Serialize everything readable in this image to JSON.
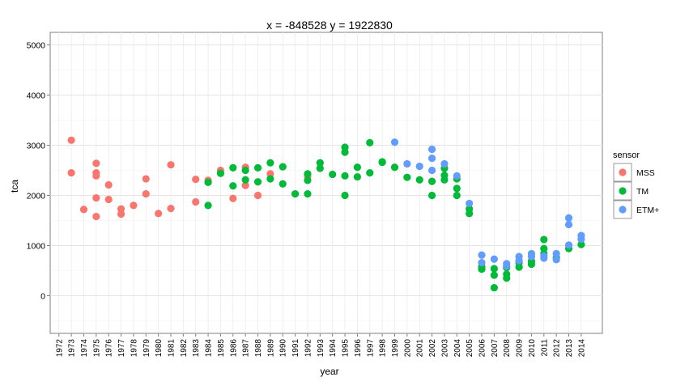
{
  "chart_data": {
    "type": "scatter",
    "title": "x = -848528 y = 1922830",
    "xlabel": "year",
    "ylabel": "tca",
    "xlim": [
      1971.3,
      2015.7
    ],
    "ylim": [
      -750,
      5250
    ],
    "x_ticks": [
      1972,
      1973,
      1974,
      1975,
      1976,
      1977,
      1978,
      1979,
      1980,
      1981,
      1982,
      1983,
      1984,
      1985,
      1986,
      1987,
      1988,
      1989,
      1990,
      1991,
      1992,
      1993,
      1994,
      1995,
      1996,
      1997,
      1998,
      1999,
      2000,
      2001,
      2002,
      2003,
      2004,
      2005,
      2006,
      2007,
      2008,
      2009,
      2010,
      2011,
      2012,
      2013,
      2014
    ],
    "y_ticks": [
      0,
      1000,
      2000,
      3000,
      4000,
      5000
    ],
    "grid": true,
    "legend": {
      "title": "sensor",
      "placement": "right",
      "entries": [
        "MSS",
        "TM",
        "ETM+"
      ]
    },
    "series": [
      {
        "name": "MSS",
        "color": "#F8766D",
        "points": [
          [
            1973,
            3100
          ],
          [
            1973,
            2450
          ],
          [
            1974,
            1720
          ],
          [
            1975,
            2640
          ],
          [
            1975,
            2450
          ],
          [
            1975,
            2390
          ],
          [
            1975,
            1950
          ],
          [
            1975,
            1580
          ],
          [
            1976,
            2210
          ],
          [
            1976,
            1920
          ],
          [
            1977,
            1730
          ],
          [
            1977,
            1630
          ],
          [
            1978,
            1800
          ],
          [
            1979,
            2330
          ],
          [
            1979,
            2030
          ],
          [
            1980,
            1640
          ],
          [
            1981,
            2610
          ],
          [
            1981,
            1740
          ],
          [
            1983,
            2320
          ],
          [
            1983,
            1870
          ],
          [
            1984,
            2300
          ],
          [
            1985,
            2500
          ],
          [
            1986,
            1940
          ],
          [
            1987,
            2560
          ],
          [
            1987,
            2200
          ],
          [
            1988,
            2000
          ],
          [
            1989,
            2430
          ],
          [
            1992,
            2380
          ]
        ]
      },
      {
        "name": "TM",
        "color": "#00BA38",
        "points": [
          [
            1984,
            2260
          ],
          [
            1984,
            1800
          ],
          [
            1985,
            2440
          ],
          [
            1986,
            2550
          ],
          [
            1986,
            2190
          ],
          [
            1987,
            2500
          ],
          [
            1987,
            2310
          ],
          [
            1988,
            2550
          ],
          [
            1988,
            2270
          ],
          [
            1989,
            2650
          ],
          [
            1989,
            2330
          ],
          [
            1990,
            2570
          ],
          [
            1990,
            2230
          ],
          [
            1991,
            2030
          ],
          [
            1992,
            2430
          ],
          [
            1992,
            2300
          ],
          [
            1992,
            2030
          ],
          [
            1993,
            2650
          ],
          [
            1993,
            2540
          ],
          [
            1994,
            2420
          ],
          [
            1995,
            2960
          ],
          [
            1995,
            2860
          ],
          [
            1995,
            2390
          ],
          [
            1995,
            2000
          ],
          [
            1996,
            2560
          ],
          [
            1996,
            2370
          ],
          [
            1997,
            3050
          ],
          [
            1997,
            2450
          ],
          [
            1998,
            2670
          ],
          [
            1998,
            2660
          ],
          [
            1999,
            2560
          ],
          [
            2000,
            2360
          ],
          [
            2001,
            2310
          ],
          [
            2002,
            2280
          ],
          [
            2002,
            2000
          ],
          [
            2003,
            2540
          ],
          [
            2003,
            2400
          ],
          [
            2003,
            2310
          ],
          [
            2004,
            2330
          ],
          [
            2004,
            2140
          ],
          [
            2004,
            2000
          ],
          [
            2005,
            1730
          ],
          [
            2005,
            1640
          ],
          [
            2006,
            580
          ],
          [
            2006,
            530
          ],
          [
            2007,
            540
          ],
          [
            2007,
            410
          ],
          [
            2007,
            160
          ],
          [
            2008,
            560
          ],
          [
            2008,
            430
          ],
          [
            2008,
            350
          ],
          [
            2009,
            660
          ],
          [
            2009,
            570
          ],
          [
            2010,
            690
          ],
          [
            2010,
            630
          ],
          [
            2011,
            1120
          ],
          [
            2011,
            940
          ],
          [
            2011,
            840
          ],
          [
            2012,
            760
          ],
          [
            2013,
            940
          ],
          [
            2014,
            1020
          ]
        ]
      },
      {
        "name": "ETM+",
        "color": "#619CFF",
        "points": [
          [
            1999,
            3060
          ],
          [
            2000,
            2630
          ],
          [
            2001,
            2580
          ],
          [
            2002,
            2920
          ],
          [
            2002,
            2740
          ],
          [
            2002,
            2500
          ],
          [
            2003,
            2630
          ],
          [
            2004,
            2390
          ],
          [
            2005,
            1840
          ],
          [
            2006,
            810
          ],
          [
            2006,
            660
          ],
          [
            2007,
            730
          ],
          [
            2008,
            640
          ],
          [
            2008,
            590
          ],
          [
            2009,
            780
          ],
          [
            2009,
            700
          ],
          [
            2010,
            840
          ],
          [
            2010,
            780
          ],
          [
            2011,
            790
          ],
          [
            2011,
            750
          ],
          [
            2012,
            840
          ],
          [
            2012,
            720
          ],
          [
            2013,
            1550
          ],
          [
            2013,
            1420
          ],
          [
            2013,
            1010
          ],
          [
            2014,
            1200
          ],
          [
            2014,
            1130
          ]
        ]
      }
    ]
  }
}
